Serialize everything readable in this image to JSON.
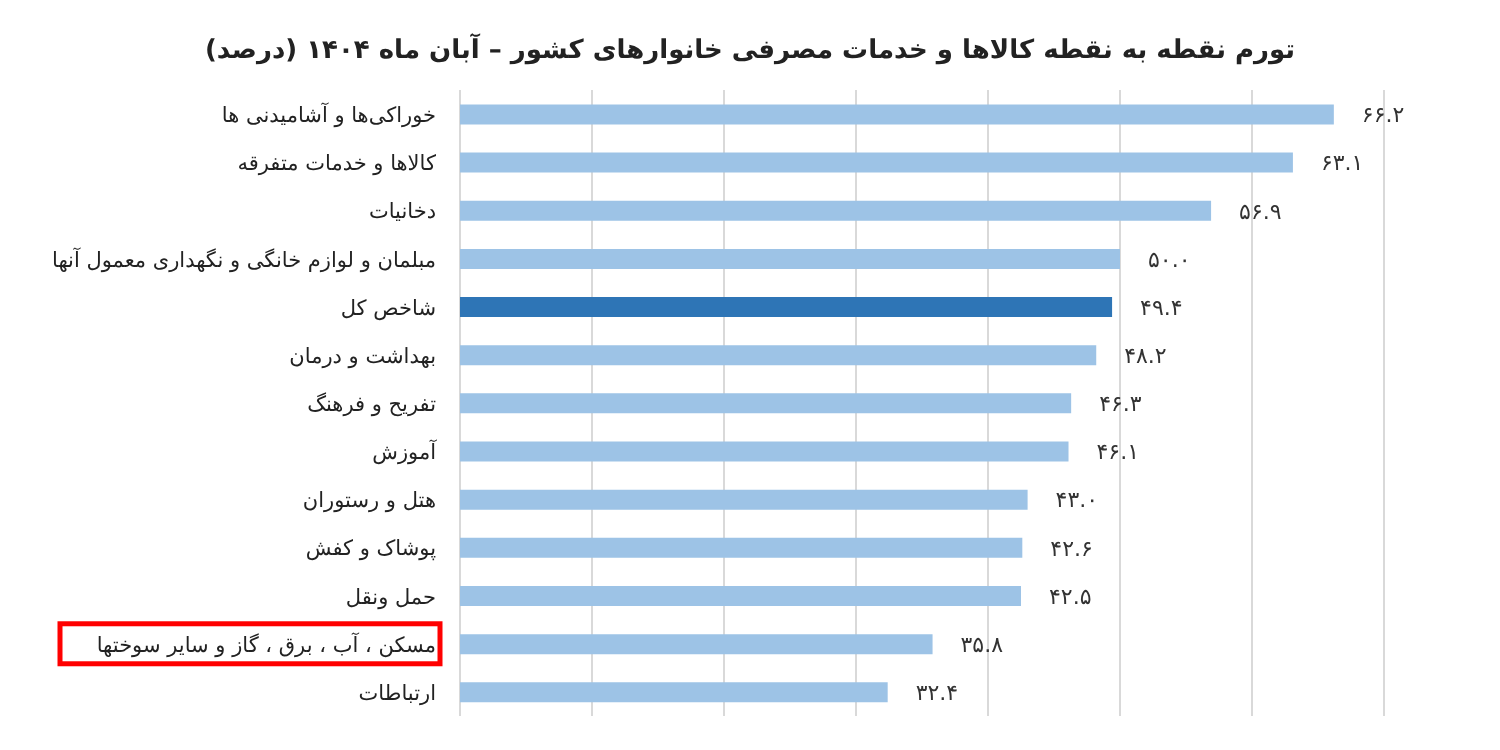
{
  "chart_data": {
    "type": "bar",
    "orientation": "horizontal",
    "title": "تورم نقطه به نقطه کالاها و خدمات مصرفی خانوارهای کشور – آبان ماه ۱۴۰۴ (درصد)",
    "categories": [
      "خوراکی‌ها و آشامیدنی ها",
      "کالاها و خدمات متفرقه",
      "دخانیات",
      "مبلمان و لوازم خانگی و نگهداری معمول آنها",
      "شاخص کل",
      "بهداشت و درمان",
      "تفریح و فرهنگ",
      "آموزش",
      "هتل و رستوران",
      "پوشاک و کفش",
      "حمل ونقل",
      "مسکن ، آب ، برق ، گاز و سایر سوختها",
      "ارتباطات"
    ],
    "values": [
      66.2,
      63.1,
      56.9,
      50.0,
      49.4,
      48.2,
      46.3,
      46.1,
      43.0,
      42.6,
      42.5,
      35.8,
      32.4
    ],
    "value_labels": [
      "۶۶.۲",
      "۶۳.۱",
      "۵۶.۹",
      "۵۰.۰",
      "۴۹.۴",
      "۴۸.۲",
      "۴۶.۳",
      "۴۶.۱",
      "۴۳.۰",
      "۴۲.۶",
      "۴۲.۵",
      "۳۵.۸",
      "۳۲.۴"
    ],
    "colors": [
      "#9dc3e6",
      "#9dc3e6",
      "#9dc3e6",
      "#9dc3e6",
      "#2e75b6",
      "#9dc3e6",
      "#9dc3e6",
      "#9dc3e6",
      "#9dc3e6",
      "#9dc3e6",
      "#9dc3e6",
      "#9dc3e6",
      "#9dc3e6"
    ],
    "xlim": [
      0,
      70
    ],
    "grid": "x",
    "tick_labels": "y"
  }
}
